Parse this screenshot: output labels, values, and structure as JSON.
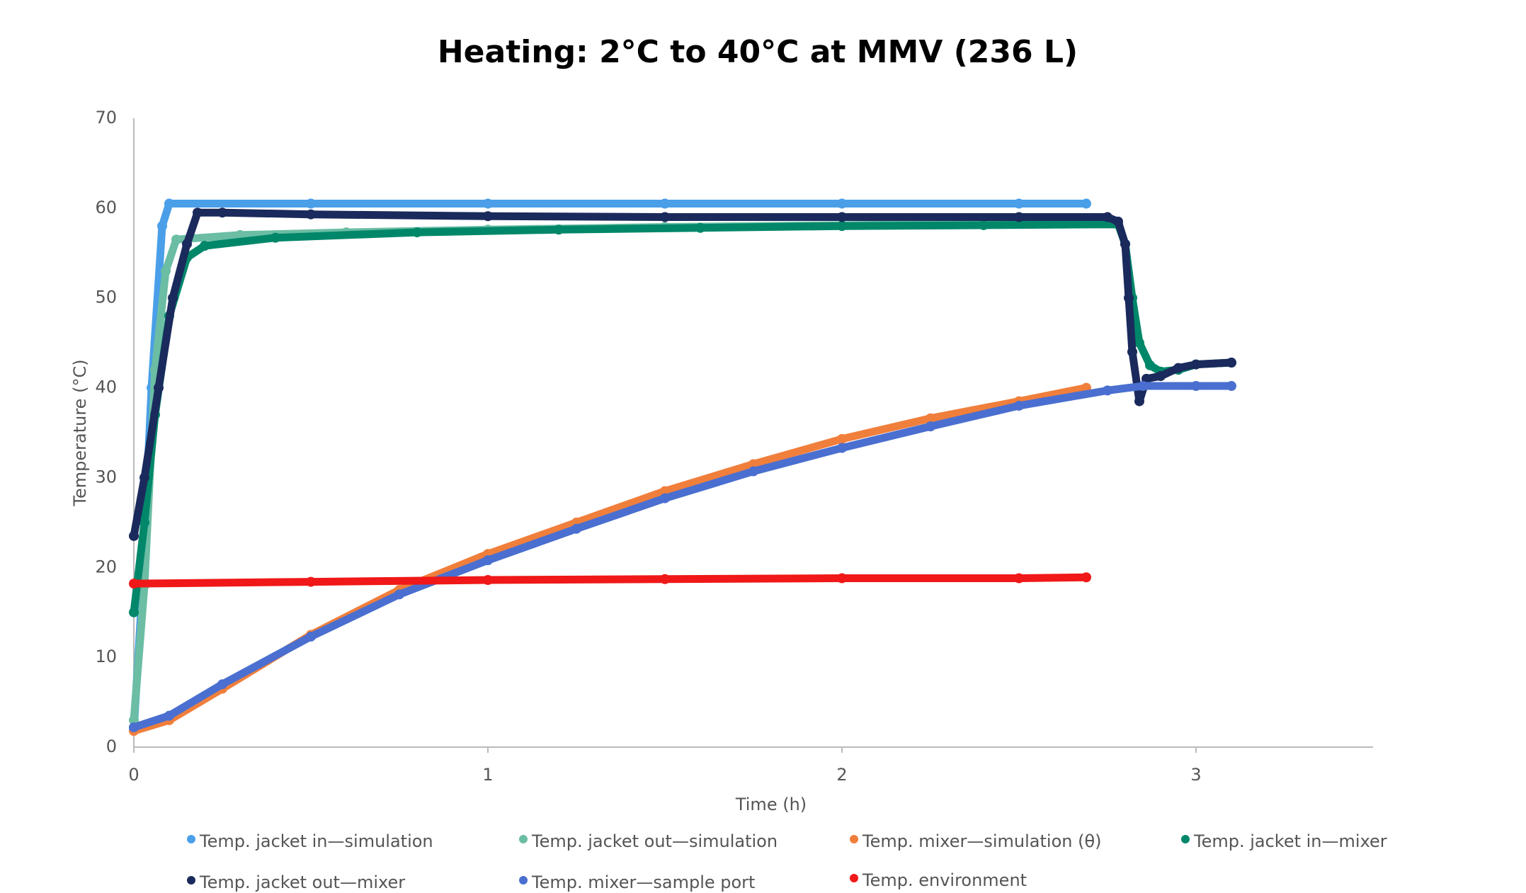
{
  "chart_data": {
    "type": "scatter",
    "title": "Heating: 2°C to 40°C at MMV (236 L)",
    "x_label": "Time (h)",
    "y_label": "Temperature (°C)",
    "xlim": [
      0,
      3.5
    ],
    "xticks": [
      0,
      1,
      2,
      3
    ],
    "ylim": [
      0,
      70
    ],
    "yticks": [
      0,
      10,
      20,
      30,
      40,
      50,
      60,
      70
    ],
    "grid": false,
    "legend": "bottom",
    "series": [
      {
        "name": "Temp. jacket in—simulation",
        "color": "#4a9fe8",
        "x": [
          0,
          0.02,
          0.05,
          0.08,
          0.1,
          0.5,
          1,
          1.5,
          2,
          2.5,
          2.69
        ],
        "values": [
          2,
          15,
          40,
          58,
          60.5,
          60.5,
          60.5,
          60.5,
          60.5,
          60.5,
          60.5
        ]
      },
      {
        "name": "Temp. jacket out—simulation",
        "color": "#6bbda4",
        "x": [
          0,
          0.03,
          0.06,
          0.09,
          0.12,
          0.3,
          0.6,
          1,
          1.5,
          2,
          2.5,
          2.69
        ],
        "values": [
          3,
          18,
          42,
          53,
          56.5,
          57,
          57.3,
          57.6,
          57.9,
          58.1,
          58.3,
          58.4
        ]
      },
      {
        "name": "Temp. mixer—simulation (θ)",
        "color": "#f07f3c",
        "x": [
          0,
          0.1,
          0.25,
          0.5,
          0.75,
          1,
          1.25,
          1.5,
          1.75,
          2,
          2.25,
          2.5,
          2.69
        ],
        "values": [
          1.8,
          3,
          6.5,
          12.5,
          17.5,
          21.5,
          25,
          28.5,
          31.5,
          34.3,
          36.6,
          38.5,
          40
        ]
      },
      {
        "name": "Temp. jacket in—mixer",
        "color": "#00876a",
        "x": [
          0,
          0.03,
          0.06,
          0.1,
          0.15,
          0.2,
          0.4,
          0.8,
          1.2,
          1.6,
          2,
          2.4,
          2.78,
          2.8,
          2.82,
          2.84,
          2.87,
          2.9,
          2.95,
          3,
          3.1
        ],
        "values": [
          15,
          25,
          37,
          48,
          54.5,
          55.8,
          56.7,
          57.3,
          57.6,
          57.8,
          58,
          58.1,
          58.2,
          56,
          50,
          45,
          42.5,
          41.8,
          42,
          42.6,
          42.8
        ]
      },
      {
        "name": "Temp. jacket out—mixer",
        "color": "#1b2a5c",
        "x": [
          0,
          0.03,
          0.07,
          0.11,
          0.15,
          0.18,
          0.25,
          0.5,
          1,
          1.5,
          2,
          2.5,
          2.75,
          2.78,
          2.8,
          2.81,
          2.82,
          2.84,
          2.86,
          2.9,
          2.95,
          3,
          3.1
        ],
        "values": [
          23.5,
          30,
          40,
          50,
          56,
          59.5,
          59.5,
          59.3,
          59.1,
          59,
          59,
          59,
          59,
          58.5,
          56,
          50,
          44,
          38.5,
          41,
          41.3,
          42.2,
          42.6,
          42.8
        ]
      },
      {
        "name": "Temp. mixer—sample port",
        "color": "#4a6fd0",
        "x": [
          0,
          0.1,
          0.25,
          0.5,
          0.75,
          1,
          1.25,
          1.5,
          1.75,
          2,
          2.25,
          2.5,
          2.75,
          2.85,
          3,
          3.1
        ],
        "values": [
          2.2,
          3.5,
          7,
          12.3,
          17,
          20.8,
          24.3,
          27.7,
          30.7,
          33.3,
          35.7,
          38,
          39.7,
          40.2,
          40.2,
          40.2
        ]
      },
      {
        "name": "Temp. environment",
        "color": "#f01818",
        "x": [
          0,
          0.5,
          1,
          1.5,
          2,
          2.5,
          2.69
        ],
        "values": [
          18.2,
          18.4,
          18.6,
          18.7,
          18.8,
          18.8,
          18.9
        ]
      }
    ]
  }
}
